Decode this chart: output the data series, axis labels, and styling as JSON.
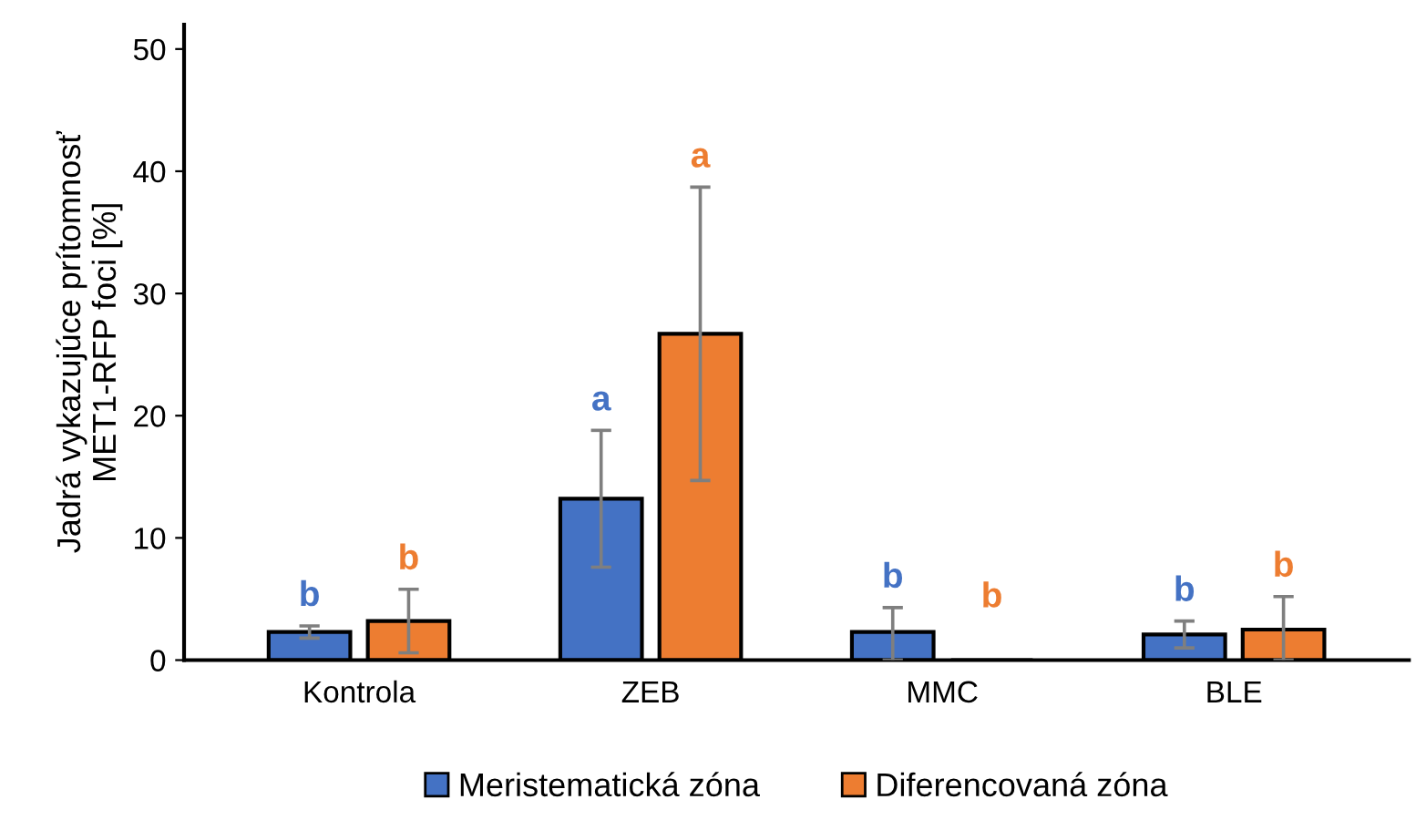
{
  "chart_data": {
    "type": "bar",
    "ylabel": "Jadrá vykazujúce prítomnosť\nMET1-RFP foci [%]",
    "categories": [
      "Kontrola",
      "ZEB",
      "MMC",
      "BLE"
    ],
    "series": [
      {
        "name": "Meristematická zóna",
        "color": "#4472c4",
        "values": [
          2.3,
          13.2,
          2.3,
          2.1
        ],
        "errors": [
          0.5,
          5.6,
          [
            0,
            4.3
          ],
          1.1
        ]
      },
      {
        "name": "Diferencovaná zóna",
        "color": "#ed7d31",
        "values": [
          3.2,
          26.7,
          0,
          2.5
        ],
        "errors": [
          2.6,
          12,
          null,
          [
            0,
            5.2
          ]
        ]
      }
    ],
    "annotations": [
      "b",
      "b",
      "a",
      "a",
      "b",
      "b",
      "b",
      "b"
    ],
    "ylim": [
      0,
      52
    ],
    "yticks": [
      0,
      10,
      20,
      30,
      40,
      50
    ],
    "grid": false,
    "legend": "bottom"
  }
}
